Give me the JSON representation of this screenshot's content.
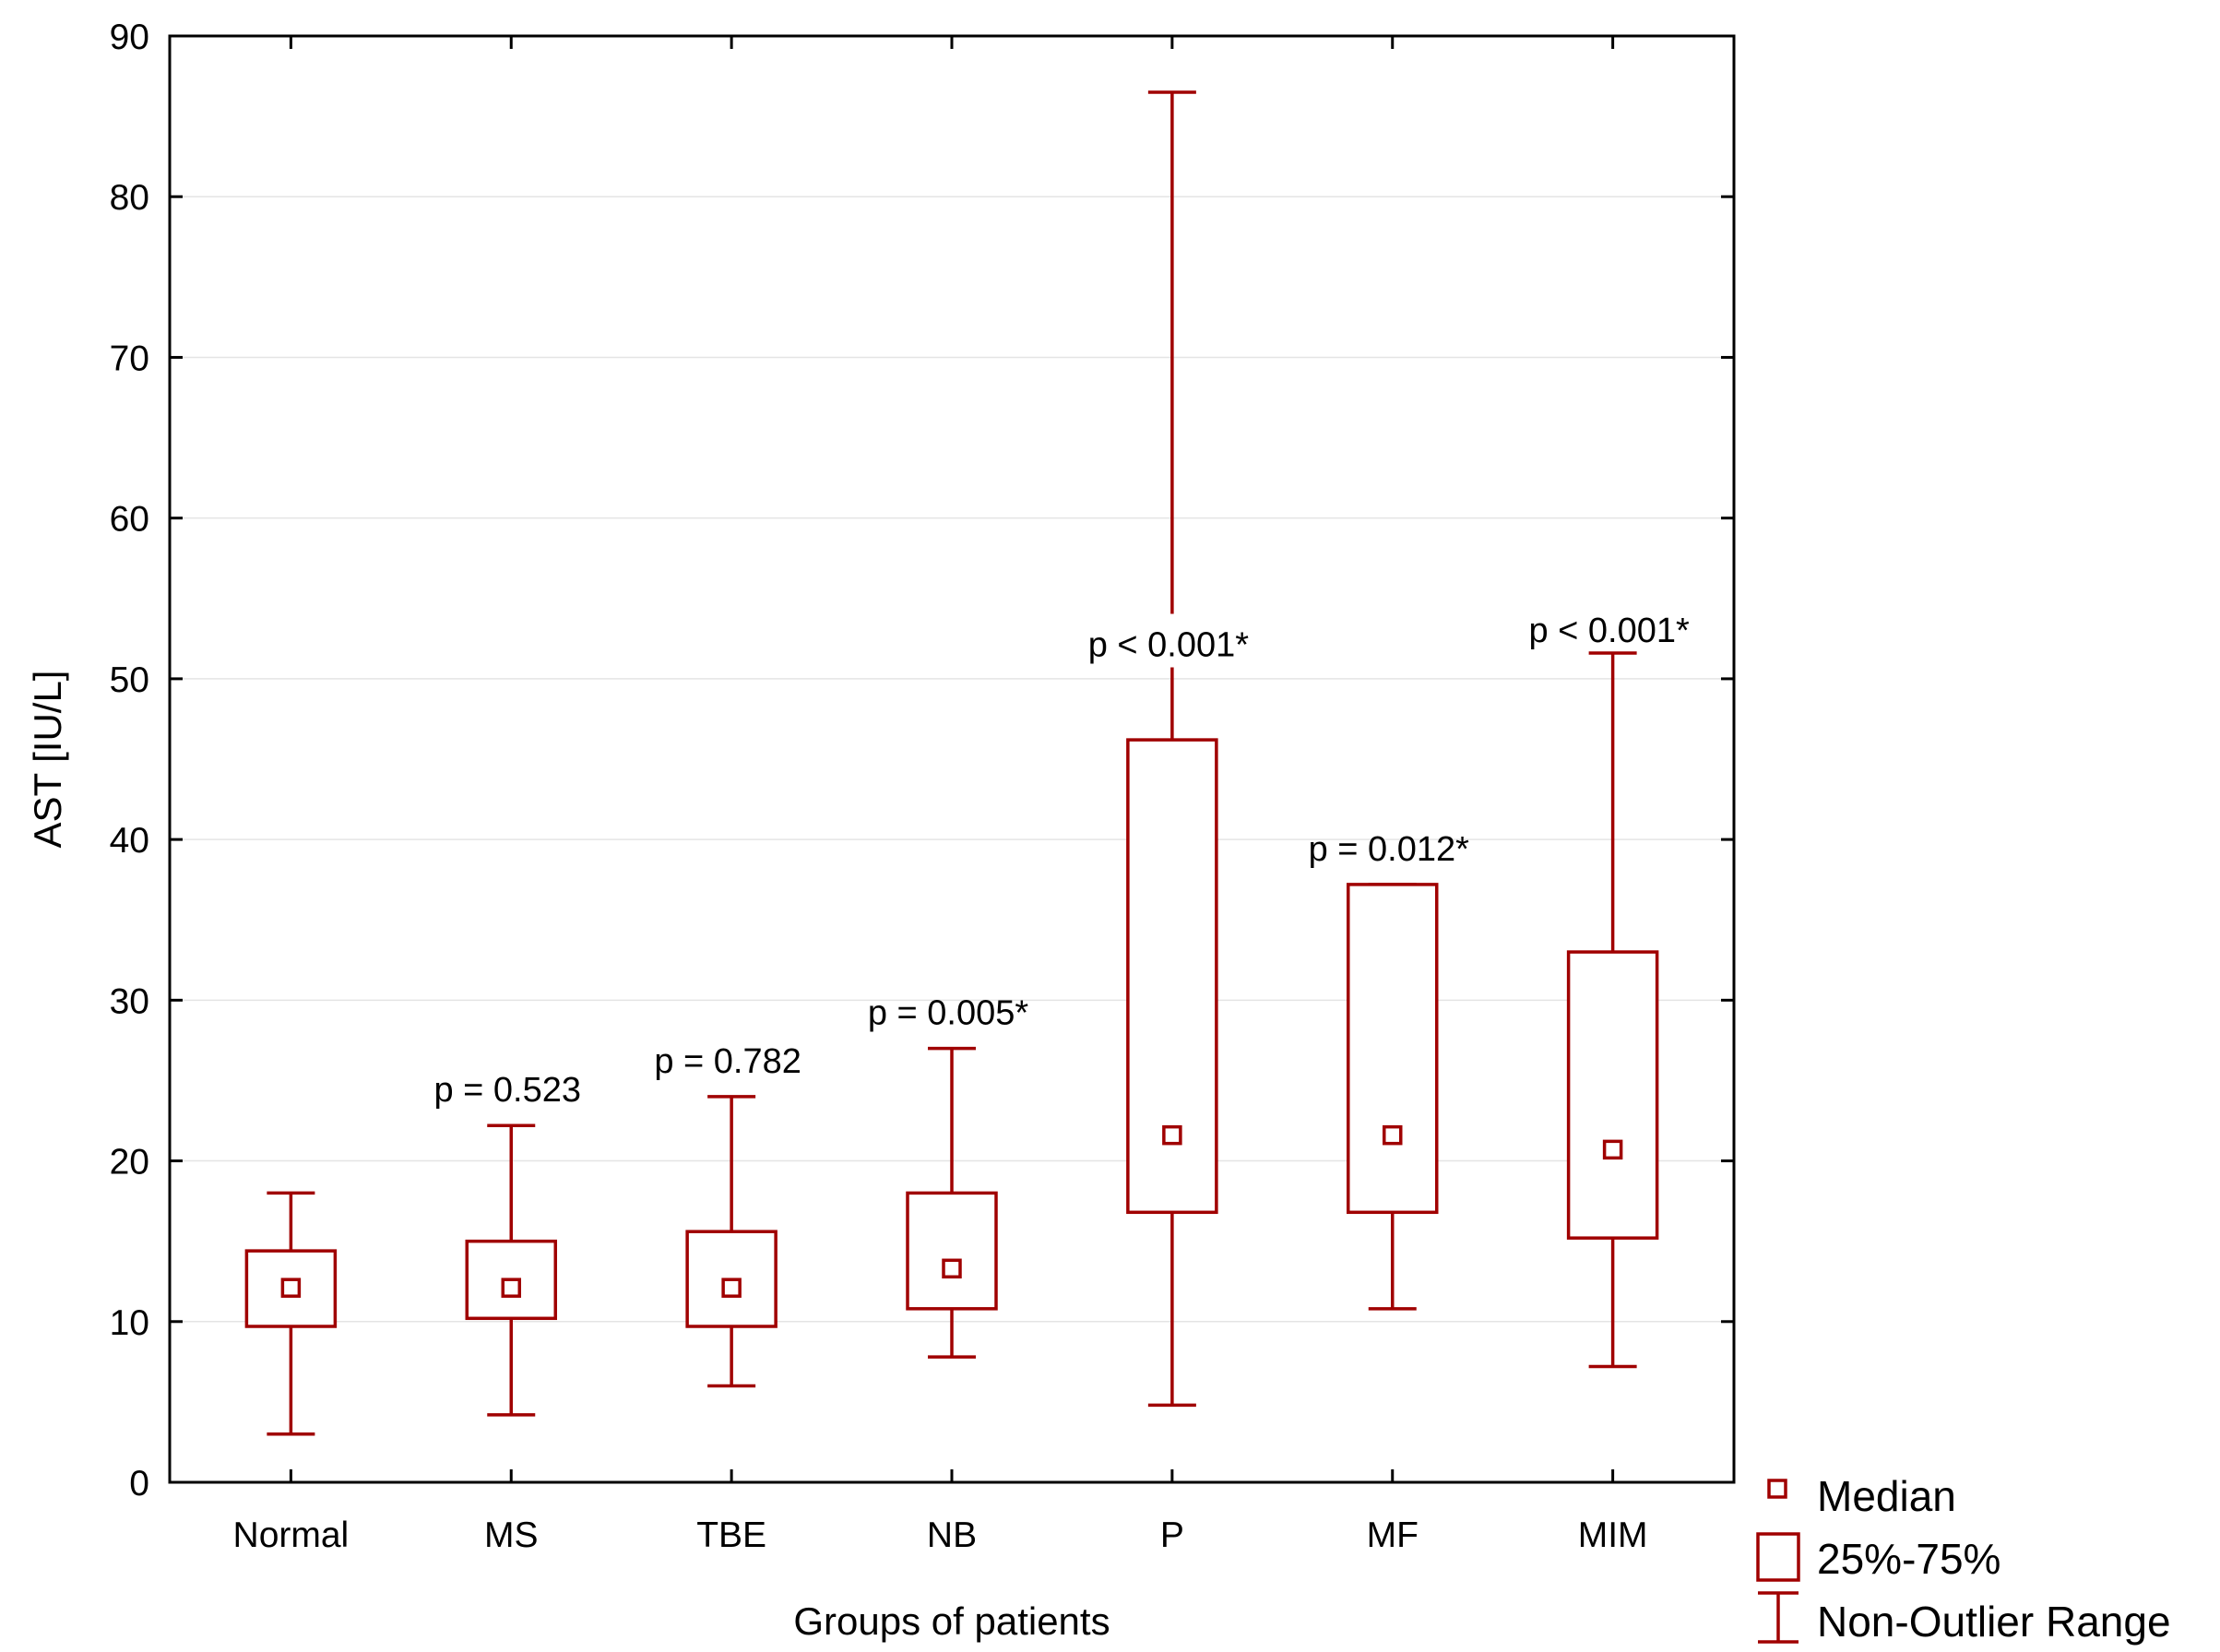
{
  "chart_data": {
    "type": "boxplot",
    "xlabel": "Groups of patients",
    "ylabel": "AST [IU/L]",
    "ylim": [
      0,
      90
    ],
    "yticks": [
      "0",
      "10",
      "20",
      "30",
      "40",
      "50",
      "60",
      "70",
      "80",
      "90"
    ],
    "grid": true,
    "series_color": "#a00000",
    "groups": [
      {
        "label": "Normal",
        "median": 12.1,
        "q1": 9.7,
        "q3": 14.4,
        "min": 3.0,
        "max": 18.0,
        "p_text": ""
      },
      {
        "label": "MS",
        "median": 12.1,
        "q1": 10.2,
        "q3": 15.0,
        "min": 4.2,
        "max": 22.2,
        "p_text": "p = 0.523"
      },
      {
        "label": "TBE",
        "median": 12.1,
        "q1": 9.7,
        "q3": 15.6,
        "min": 6.0,
        "max": 24.0,
        "p_text": "p = 0.782"
      },
      {
        "label": "NB",
        "median": 13.3,
        "q1": 10.8,
        "q3": 18.0,
        "min": 7.8,
        "max": 27.0,
        "p_text": "p = 0.005*"
      },
      {
        "label": "P",
        "median": 21.6,
        "q1": 16.8,
        "q3": 46.2,
        "min": 4.8,
        "max": 86.5,
        "p_text": "p < 0.001*"
      },
      {
        "label": "MF",
        "median": 21.6,
        "q1": 16.8,
        "q3": 37.2,
        "min": 10.8,
        "max": 37.2,
        "p_text": "p = 0.012*"
      },
      {
        "label": "MIM",
        "median": 20.7,
        "q1": 15.2,
        "q3": 33.0,
        "min": 7.2,
        "max": 51.6,
        "p_text": "p < 0.001*"
      }
    ],
    "legend": [
      "Median",
      "25%-75%",
      "Non-Outlier Range"
    ],
    "legend_position": "bottom-right outside"
  }
}
